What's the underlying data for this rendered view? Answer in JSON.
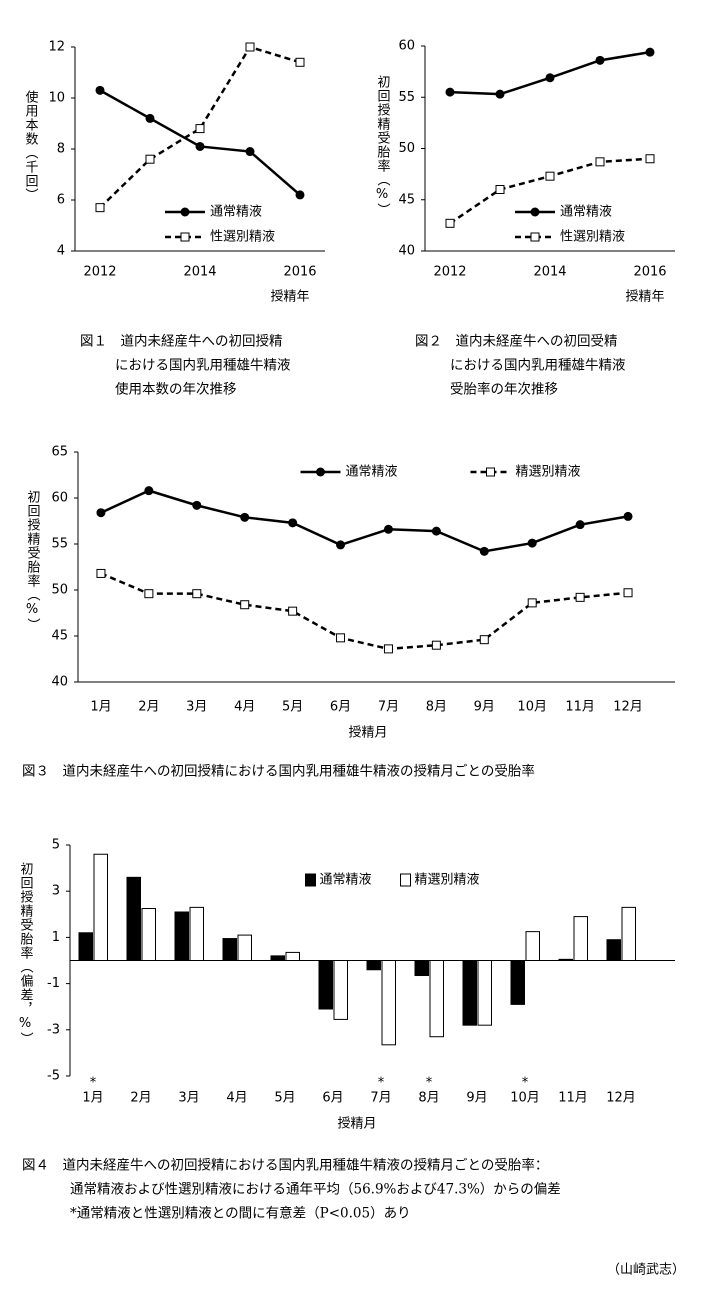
{
  "chart_data": [
    {
      "type": "line",
      "x": [
        2012,
        2013,
        2014,
        2015,
        2016
      ],
      "xlim": [
        2011.5,
        2016.5
      ],
      "xticks": [
        2012,
        2014,
        2016
      ],
      "ylim": [
        4,
        12
      ],
      "yticks": [
        4,
        6,
        8,
        10,
        12
      ],
      "x_label": "授精年",
      "y_label": "使用本数（千回）",
      "legend": "lower right",
      "series": [
        {
          "name": "通常精液",
          "color": "#000000",
          "marker": "circle",
          "line_style": "solid",
          "values": [
            10.3,
            9.2,
            8.1,
            7.9,
            6.2
          ]
        },
        {
          "name": "性選別精液",
          "color": "#000000",
          "marker": "square",
          "line_style": "dashed",
          "values": [
            5.7,
            7.6,
            8.8,
            12.0,
            11.4
          ]
        }
      ],
      "caption": [
        "図１　道内未経産牛への初回授精",
        "における国内乳用種雄牛精液",
        "使用本数の年次推移"
      ]
    },
    {
      "type": "line",
      "x": [
        2012,
        2013,
        2014,
        2015,
        2016
      ],
      "xlim": [
        2011.5,
        2016.5
      ],
      "xticks": [
        2012,
        2014,
        2016
      ],
      "ylim": [
        40,
        60
      ],
      "yticks": [
        40,
        45,
        50,
        55,
        60
      ],
      "x_label": "授精年",
      "y_label": "初回授精受胎率（%）",
      "legend": "lower right",
      "series": [
        {
          "name": "通常精液",
          "color": "#000000",
          "marker": "circle",
          "line_style": "solid",
          "values": [
            55.5,
            55.3,
            56.9,
            58.6,
            59.4
          ]
        },
        {
          "name": "性選別精液",
          "color": "#000000",
          "marker": "square",
          "line_style": "dashed",
          "values": [
            42.7,
            46.0,
            47.3,
            48.7,
            49.0
          ]
        }
      ],
      "caption": [
        "図２　道内未経産牛への初回受精",
        "における国内乳用種雄牛精液",
        "受胎率の年次推移"
      ]
    },
    {
      "type": "line",
      "categories": [
        "1月",
        "2月",
        "3月",
        "4月",
        "5月",
        "6月",
        "7月",
        "8月",
        "9月",
        "10月",
        "11月",
        "12月"
      ],
      "ylim": [
        40,
        65
      ],
      "yticks": [
        40,
        45,
        50,
        55,
        60,
        65
      ],
      "x_label": "授精月",
      "y_label": "初回授精受胎率（%）",
      "legend": "upper center",
      "series": [
        {
          "name": "通常精液",
          "color": "#000000",
          "marker": "circle",
          "line_style": "solid",
          "values": [
            58.4,
            60.8,
            59.2,
            57.9,
            57.3,
            54.9,
            56.6,
            56.4,
            54.2,
            55.1,
            57.1,
            58.0
          ]
        },
        {
          "name": "精選別精液",
          "color": "#000000",
          "marker": "square",
          "line_style": "dashed",
          "values": [
            51.8,
            49.6,
            49.6,
            48.4,
            47.7,
            44.8,
            43.6,
            44.0,
            44.6,
            48.6,
            49.2,
            49.7
          ]
        }
      ],
      "caption": [
        "図３　道内未経産牛への初回授精における国内乳用種雄牛精液の授精月ごとの受胎率"
      ]
    },
    {
      "type": "bar",
      "categories": [
        "1月",
        "2月",
        "3月",
        "4月",
        "5月",
        "6月",
        "7月",
        "8月",
        "9月",
        "10月",
        "11月",
        "12月"
      ],
      "ylim": [
        -5,
        5
      ],
      "yticks": [
        -5,
        -3,
        -1,
        1,
        3,
        5
      ],
      "x_label": "授精月",
      "y_label": "初回授精受胎率（偏差，%）",
      "legend": "upper center",
      "series": [
        {
          "name": "通常精液",
          "color": "#000000",
          "values": [
            1.2,
            3.6,
            2.1,
            0.95,
            0.2,
            -2.1,
            -0.4,
            -0.65,
            -2.8,
            -1.9,
            0.05,
            0.9
          ]
        },
        {
          "name": "精選別精液",
          "color": "#ffffff",
          "values": [
            4.6,
            2.25,
            2.3,
            1.1,
            0.35,
            -2.55,
            -3.65,
            -3.3,
            -2.8,
            1.25,
            1.9,
            2.3
          ]
        }
      ],
      "significance": [
        "*",
        null,
        null,
        null,
        null,
        null,
        "*",
        "*",
        null,
        "*",
        null,
        null
      ],
      "caption": [
        "図４　道内未経産牛への初回授精における国内乳用種雄牛精液の授精月ごとの受胎率：",
        "通常精液および性選別精液における通年平均（56.9%および47.3%）からの偏差",
        "*通常精液と性選別精液との間に有意差（P<0.05）あり"
      ]
    }
  ],
  "author": "（山崎武志）"
}
